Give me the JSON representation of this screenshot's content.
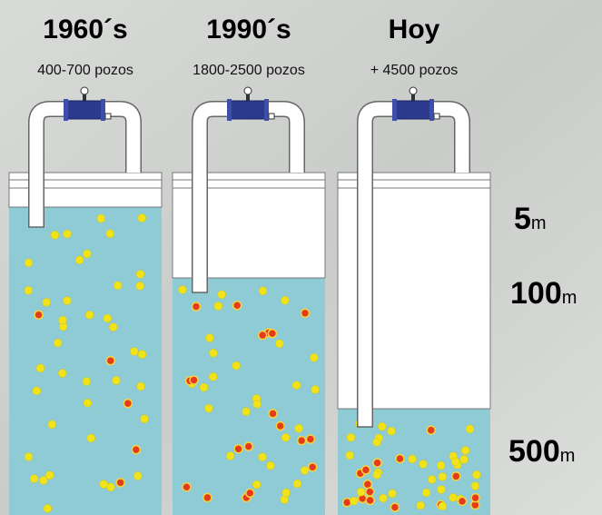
{
  "columns": [
    {
      "title": "1960´s",
      "subtitle": "400-700 pozos"
    },
    {
      "title": "1990´s",
      "subtitle": "1800-2500 pozos"
    },
    {
      "title": "Hoy",
      "subtitle": "+ 4500 pozos"
    }
  ],
  "depths": [
    {
      "value": 5,
      "unit": "m"
    },
    {
      "value": 100,
      "unit": "m"
    },
    {
      "value": 500,
      "unit": "m"
    }
  ]
}
